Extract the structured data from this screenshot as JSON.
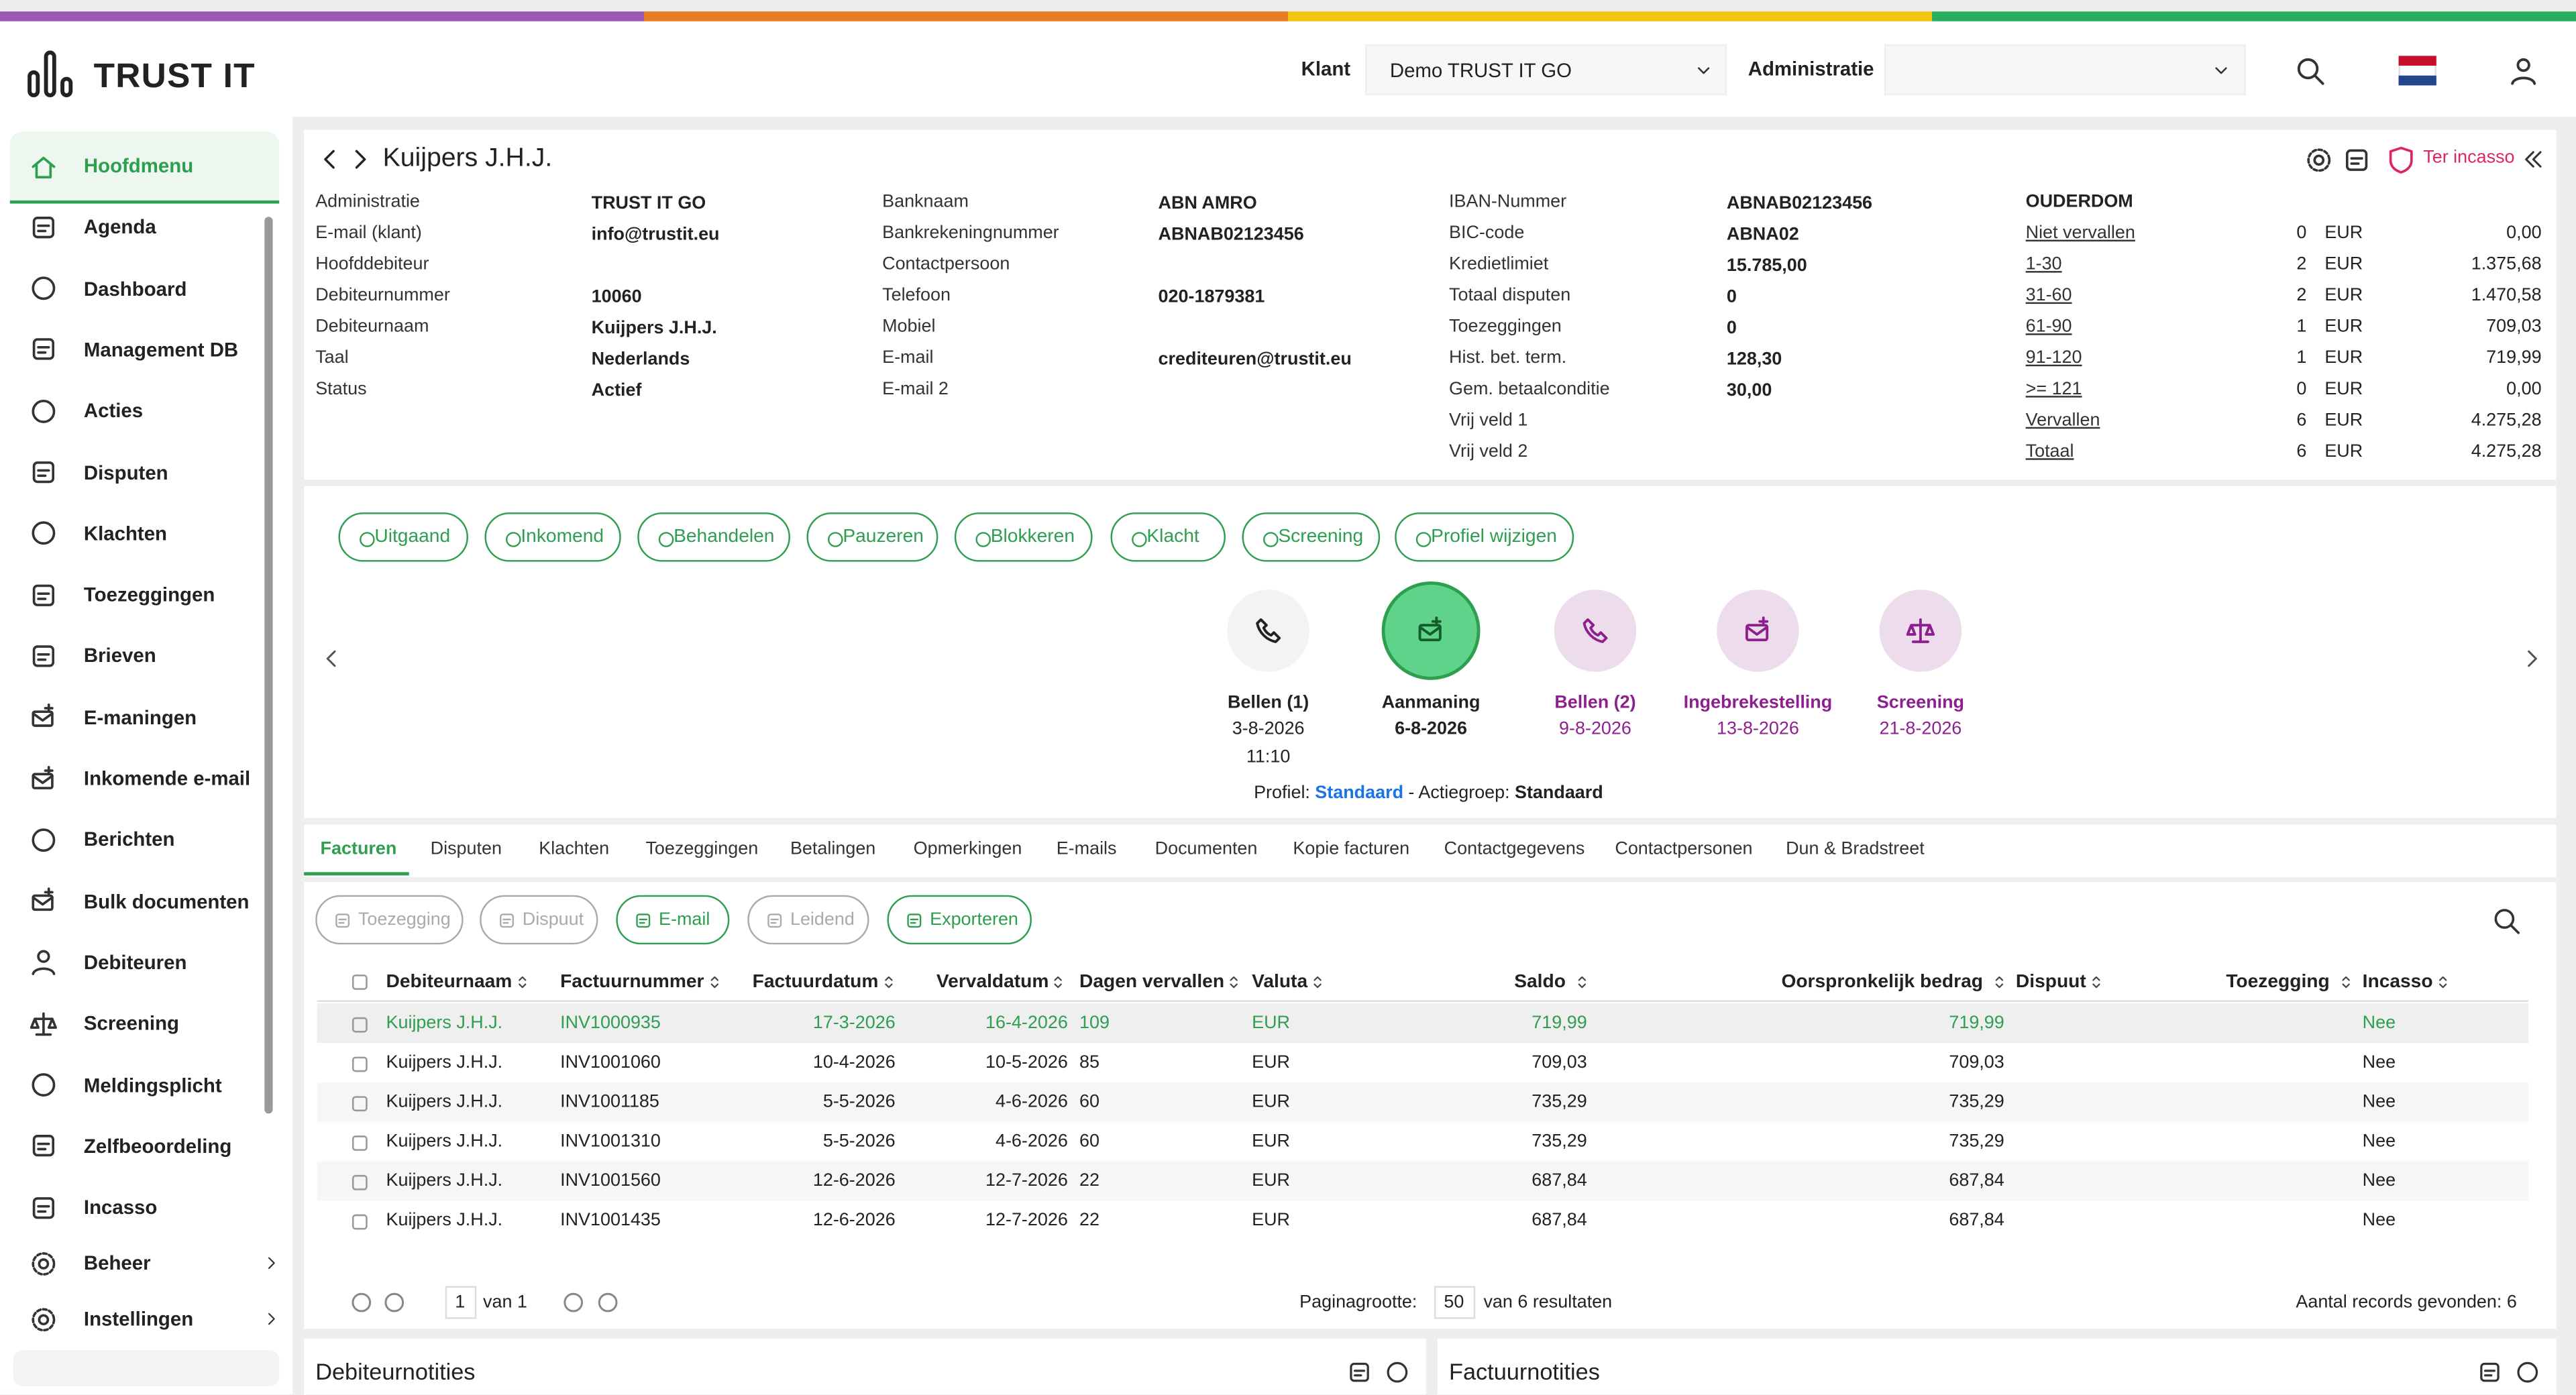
{
  "header": {
    "logo": "TRUST IT",
    "klant_label": "Klant",
    "klant_value": "Demo TRUST IT GO",
    "admin_label": "Administratie"
  },
  "sidebar": {
    "items": [
      "Hoofdmenu",
      "Agenda",
      "Dashboard",
      "Management DB",
      "Acties",
      "Disputen",
      "Klachten",
      "Toezeggingen",
      "Brieven",
      "E-maningen",
      "Inkomende e-mail",
      "Berichten",
      "Bulk documenten",
      "Debiteuren",
      "Screening",
      "Meldingsplicht",
      "Zelfbeoordeling",
      "Incasso"
    ],
    "bottom": [
      "Beheer",
      "Instellingen"
    ]
  },
  "debtor": {
    "name": "Kuijpers J.H.J.",
    "status_link": "Ter incasso",
    "columns": [
      [
        {
          "label": "Administratie",
          "value": "TRUST IT GO"
        },
        {
          "label": "E-mail (klant)",
          "value": "info@trustit.eu"
        },
        {
          "label": "Hoofddebiteur"
        },
        {
          "label": "Debiteurnummer",
          "value": "10060"
        },
        {
          "label": "Debiteurnaam",
          "value": "Kuijpers J.H.J."
        },
        {
          "label": "Taal",
          "value": "Nederlands"
        },
        {
          "label": "Status",
          "value": "Actief"
        }
      ],
      [
        {
          "label": "Banknaam",
          "value": "ABN AMRO"
        },
        {
          "label": "Bankrekeningnummer",
          "value": "ABNAB02123456"
        },
        {
          "label": "Contactpersoon"
        },
        {
          "label": "Telefoon",
          "value": "020-1879381"
        },
        {
          "label": "Mobiel"
        },
        {
          "label": "E-mail",
          "value": "crediteuren@trustit.eu"
        },
        {
          "label": "E-mail 2"
        }
      ],
      [
        {
          "label": "IBAN-Nummer",
          "value": "ABNAB02123456"
        },
        {
          "label": "BIC-code",
          "value": "ABNA02"
        },
        {
          "label": "Kredietlimiet",
          "value": "15.785,00"
        },
        {
          "label": "Totaal disputen",
          "value": "0"
        },
        {
          "label": "Toezeggingen",
          "value": "0"
        },
        {
          "label": "Hist. bet. term.",
          "value": "128,30"
        },
        {
          "label": "Gem. betaalconditie",
          "value": "30,00"
        },
        {
          "label": "Vrij veld 1"
        },
        {
          "label": "Vrij veld 2"
        }
      ]
    ],
    "aging": {
      "title": "OUDERDOM",
      "rows": [
        {
          "label": "Niet vervallen",
          "count": 0,
          "currency": "EUR",
          "amount": "0,00"
        },
        {
          "label": "1-30",
          "count": 2,
          "currency": "EUR",
          "amount": "1.375,68"
        },
        {
          "label": "31-60",
          "count": 2,
          "currency": "EUR",
          "amount": "1.470,58"
        },
        {
          "label": "61-90",
          "count": 1,
          "currency": "EUR",
          "amount": "709,03"
        },
        {
          "label": "91-120",
          "count": 1,
          "currency": "EUR",
          "amount": "719,99"
        },
        {
          "label": ">= 121",
          "count": 0,
          "currency": "EUR",
          "amount": "0,00"
        },
        {
          "label": "Vervallen",
          "count": 6,
          "currency": "EUR",
          "amount": "4.275,28"
        },
        {
          "label": "Totaal",
          "count": 6,
          "currency": "EUR",
          "amount": "4.275,28"
        }
      ]
    }
  },
  "actions": [
    "Uitgaand",
    "Inkomend",
    "Behandelen",
    "Pauzeren",
    "Blokkeren",
    "Klacht",
    "Screening",
    "Profiel wijzigen"
  ],
  "timeline": [
    {
      "label": "Bellen (1)",
      "date": "3-8-2026",
      "time": "11:10",
      "state": "done"
    },
    {
      "label": "Aanmaning",
      "date": "6-8-2026",
      "state": "current"
    },
    {
      "label": "Bellen (2)",
      "date": "9-8-2026",
      "state": "planned"
    },
    {
      "label": "Ingebrekestelling",
      "date": "13-8-2026",
      "state": "planned"
    },
    {
      "label": "Screening",
      "date": "21-8-2026",
      "state": "planned"
    }
  ],
  "profile": {
    "profile_label": "Profiel:",
    "profile": "Standaard",
    "group_label": "- Actiegroep:",
    "group": "Standaard"
  },
  "tabs": [
    "Facturen",
    "Disputen",
    "Klachten",
    "Toezeggingen",
    "Betalingen",
    "Opmerkingen",
    "E-mails",
    "Documenten",
    "Kopie facturen",
    "Contactgegevens",
    "Contactpersonen",
    "Dun & Bradstreet"
  ],
  "toolbar": [
    {
      "label": "Toezegging",
      "enabled": false
    },
    {
      "label": "Dispuut",
      "enabled": false
    },
    {
      "label": "E-mail",
      "enabled": true
    },
    {
      "label": "Leidend",
      "enabled": false
    },
    {
      "label": "Exporteren",
      "enabled": true
    }
  ],
  "table": {
    "columns": [
      "Debiteurnaam",
      "Factuurnummer",
      "Factuurdatum",
      "Vervaldatum",
      "Dagen vervallen",
      "Valuta",
      "Saldo",
      "Oorspronkelijk bedrag",
      "Dispuut",
      "Toezegging",
      "Incasso"
    ],
    "rows": [
      {
        "debiteurnaam": "Kuijpers J.H.J.",
        "factuurnummer": "INV1000935",
        "factuurdatum": "17-3-2026",
        "vervaldatum": "16-4-2026",
        "dagen": 109,
        "valuta": "EUR",
        "saldo": "719,99",
        "origineel": "719,99",
        "incasso": "Nee"
      },
      {
        "debiteurnaam": "Kuijpers J.H.J.",
        "factuurnummer": "INV1001060",
        "factuurdatum": "10-4-2026",
        "vervaldatum": "10-5-2026",
        "dagen": 85,
        "valuta": "EUR",
        "saldo": "709,03",
        "origineel": "709,03",
        "incasso": "Nee"
      },
      {
        "debiteurnaam": "Kuijpers J.H.J.",
        "factuurnummer": "INV1001185",
        "factuurdatum": "5-5-2026",
        "vervaldatum": "4-6-2026",
        "dagen": 60,
        "valuta": "EUR",
        "saldo": "735,29",
        "origineel": "735,29",
        "incasso": "Nee"
      },
      {
        "debiteurnaam": "Kuijpers J.H.J.",
        "factuurnummer": "INV1001310",
        "factuurdatum": "5-5-2026",
        "vervaldatum": "4-6-2026",
        "dagen": 60,
        "valuta": "EUR",
        "saldo": "735,29",
        "origineel": "735,29",
        "incasso": "Nee"
      },
      {
        "debiteurnaam": "Kuijpers J.H.J.",
        "factuurnummer": "INV1001560",
        "factuurdatum": "12-6-2026",
        "vervaldatum": "12-7-2026",
        "dagen": 22,
        "valuta": "EUR",
        "saldo": "687,84",
        "origineel": "687,84",
        "incasso": "Nee"
      },
      {
        "debiteurnaam": "Kuijpers J.H.J.",
        "factuurnummer": "INV1001435",
        "factuurdatum": "12-6-2026",
        "vervaldatum": "12-7-2026",
        "dagen": 22,
        "valuta": "EUR",
        "saldo": "687,84",
        "origineel": "687,84",
        "incasso": "Nee"
      }
    ]
  },
  "pagination": {
    "page": "1",
    "of": "van 1",
    "size_label": "Paginagrootte:",
    "size": "50",
    "results": "van 6 resultaten",
    "found": "Aantal records gevonden: 6"
  },
  "notes": [
    "Debiteurnotities",
    "Factuurnotities"
  ]
}
